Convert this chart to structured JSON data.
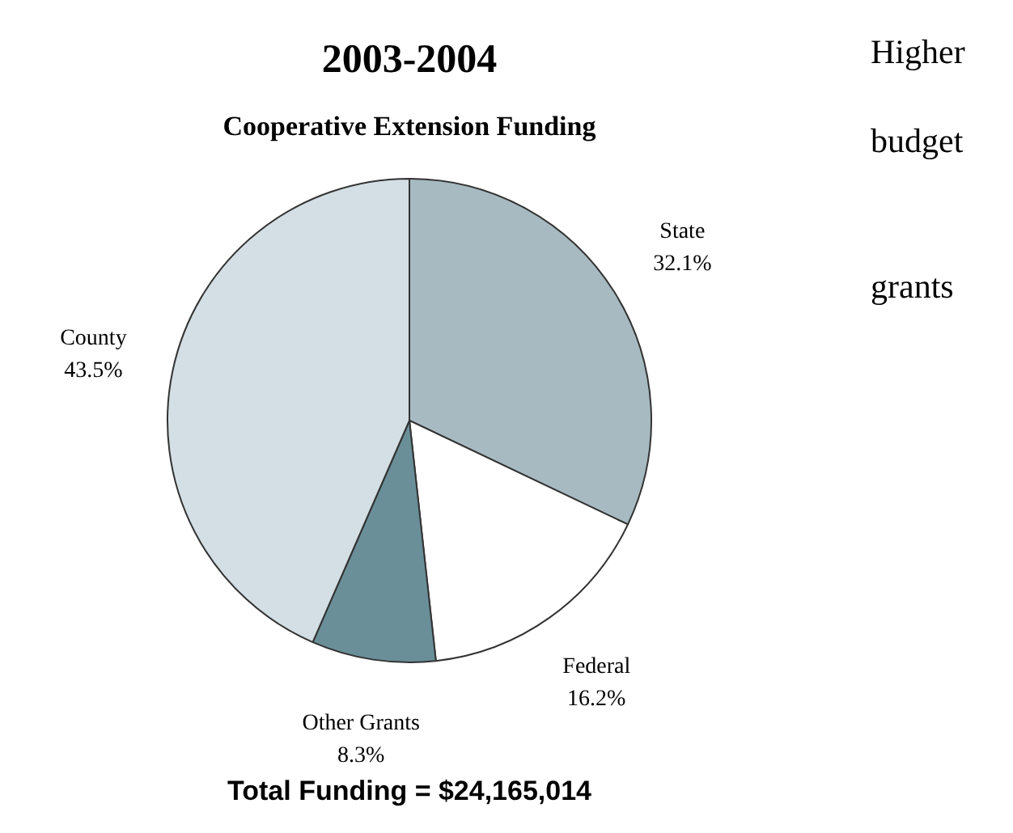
{
  "chart_data": {
    "type": "pie",
    "title": "2003-2004",
    "subtitle": "Cooperative Extension Funding",
    "categories": [
      "State",
      "Federal",
      "Other Grants",
      "County"
    ],
    "values": [
      32.1,
      16.2,
      8.3,
      43.5
    ],
    "colors": [
      "#a7bac1",
      "#ffffff",
      "#6a8f99",
      "#d3dfe4"
    ],
    "value_labels": [
      "32.1%",
      "16.2%",
      "8.3%",
      "43.5%"
    ],
    "legend": false,
    "annotations": [
      "Total Funding = $24,165,014",
      "Higher",
      "budget",
      "grants"
    ]
  }
}
